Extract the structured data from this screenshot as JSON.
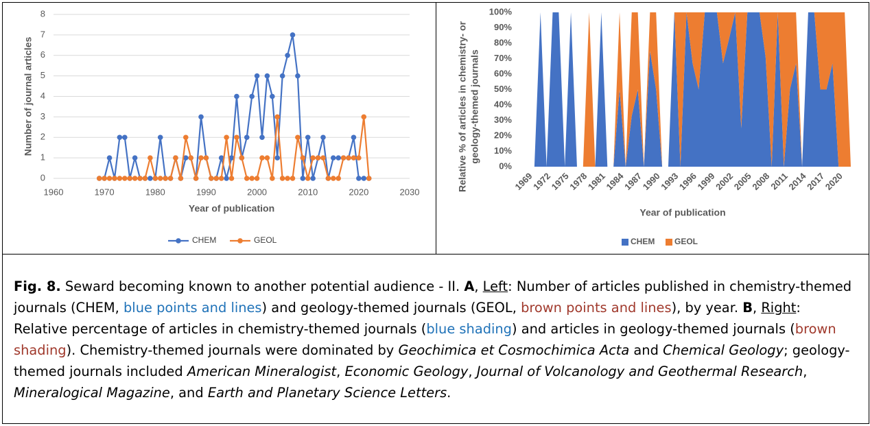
{
  "chart_data": [
    {
      "type": "line",
      "xlabel": "Year of publication",
      "ylabel": "Number of journal articles",
      "x": [
        1969,
        1970,
        1971,
        1972,
        1973,
        1974,
        1975,
        1976,
        1977,
        1978,
        1979,
        1980,
        1981,
        1982,
        1983,
        1984,
        1985,
        1986,
        1987,
        1988,
        1989,
        1990,
        1991,
        1992,
        1993,
        1994,
        1995,
        1996,
        1997,
        1998,
        1999,
        2000,
        2001,
        2002,
        2003,
        2004,
        2005,
        2006,
        2007,
        2008,
        2009,
        2010,
        2011,
        2012,
        2013,
        2014,
        2015,
        2016,
        2017,
        2018,
        2019,
        2020,
        2021,
        2022
      ],
      "series": [
        {
          "name": "CHEM",
          "color": "#4472c4",
          "values": [
            0,
            0,
            1,
            0,
            2,
            2,
            0,
            1,
            0,
            0,
            0,
            0,
            2,
            0,
            0,
            1,
            0,
            1,
            1,
            0,
            3,
            1,
            0,
            0,
            1,
            0,
            1,
            4,
            1,
            2,
            4,
            5,
            2,
            5,
            4,
            1,
            5,
            6,
            7,
            5,
            0,
            2,
            0,
            1,
            2,
            0,
            1,
            1,
            1,
            1,
            2,
            0,
            0,
            0
          ]
        },
        {
          "name": "GEOL",
          "color": "#ed7d31",
          "values": [
            0,
            0,
            0,
            0,
            0,
            0,
            0,
            0,
            0,
            0,
            1,
            0,
            0,
            0,
            0,
            1,
            0,
            2,
            1,
            0,
            1,
            1,
            0,
            0,
            0,
            2,
            0,
            2,
            1,
            0,
            0,
            0,
            1,
            1,
            0,
            3,
            0,
            0,
            0,
            2,
            1,
            0,
            1,
            1,
            1,
            0,
            0,
            0,
            1,
            1,
            1,
            1,
            3,
            0
          ]
        }
      ],
      "xlim": [
        1960,
        2030
      ],
      "xticks": [
        1960,
        1970,
        1980,
        1990,
        2000,
        2010,
        2020,
        2030
      ],
      "ylim": [
        0,
        8
      ],
      "yticks": [
        0,
        1,
        2,
        3,
        4,
        5,
        6,
        7,
        8
      ],
      "grid": true,
      "legend": "bottom"
    },
    {
      "type": "area",
      "xlabel": "Year of publication",
      "ylabel": [
        "Relative % of articles in chemistry- or",
        "geology-themed journals"
      ],
      "categories": [
        "1969",
        null,
        null,
        "1972",
        null,
        null,
        "1975",
        null,
        null,
        "1978",
        null,
        null,
        "1981",
        null,
        null,
        "1984",
        null,
        null,
        "1987",
        null,
        null,
        "1990",
        null,
        null,
        "1993",
        null,
        null,
        "1996",
        null,
        null,
        "1999",
        null,
        null,
        "2002",
        null,
        null,
        "2005",
        null,
        null,
        "2008",
        null,
        null,
        "2011",
        null,
        null,
        "2014",
        null,
        null,
        "2017",
        null,
        null,
        "2020",
        null,
        null
      ],
      "series": [
        {
          "name": "CHEM",
          "color": "#4472c4",
          "values": [
            0,
            0,
            100,
            0,
            100,
            100,
            0,
            100,
            0,
            0,
            0,
            0,
            100,
            0,
            0,
            50,
            0,
            33,
            50,
            0,
            75,
            50,
            0,
            0,
            100,
            0,
            100,
            67,
            50,
            100,
            100,
            100,
            67,
            83,
            100,
            25,
            100,
            100,
            100,
            71,
            0,
            100,
            0,
            50,
            67,
            0,
            100,
            100,
            50,
            50,
            67,
            0,
            0,
            0
          ]
        },
        {
          "name": "GEOL",
          "color": "#ed7d31",
          "values": [
            0,
            0,
            0,
            0,
            0,
            0,
            0,
            0,
            0,
            0,
            100,
            0,
            0,
            0,
            0,
            50,
            0,
            67,
            50,
            0,
            25,
            50,
            0,
            0,
            0,
            100,
            0,
            33,
            50,
            0,
            0,
            0,
            33,
            17,
            0,
            75,
            0,
            0,
            0,
            29,
            100,
            0,
            100,
            50,
            33,
            0,
            0,
            0,
            50,
            50,
            33,
            100,
            100,
            0
          ]
        }
      ],
      "stacked": "percent",
      "ylim": [
        0,
        100
      ],
      "yticks": [
        {
          "value": 0,
          "label": "0%"
        },
        {
          "value": 10,
          "label": "10%"
        },
        {
          "value": 20,
          "label": "20%"
        },
        {
          "value": 30,
          "label": "30%"
        },
        {
          "value": 40,
          "label": "40%"
        },
        {
          "value": 50,
          "label": "50%"
        },
        {
          "value": 60,
          "label": "60%"
        },
        {
          "value": 70,
          "label": "70%"
        },
        {
          "value": 80,
          "label": "80%"
        },
        {
          "value": 90,
          "label": "90%"
        },
        {
          "value": 100,
          "label": "100%"
        }
      ],
      "grid": false,
      "legend": "bottom"
    }
  ],
  "caption": [
    "Fig. 8.",
    " Seward becoming known to another potential audience - II. ",
    "A",
    ", ",
    "Left",
    ": Number of articles published in chemistry-themed journals (CHEM, ",
    "blue points and lines",
    ") and geology-themed journals (GEOL, ",
    "brown points and lines",
    "), by year. ",
    "B",
    ", ",
    "Right",
    ": Relative percentage of articles in chemistry-themed journals (",
    "blue shading",
    ") and articles in geology-themed journals (",
    "brown shading",
    "). Chemistry-themed journals were dominated by ",
    "Geochimica et Cosmochimica Acta",
    " and ",
    "Chemical Geology",
    "; geology-themed journals included ",
    "American Mineralogist",
    ", ",
    "Economic Geology",
    ", ",
    "Journal of Volcanology and Geothermal Research",
    ", ",
    "Mineralogical Magazine",
    ", and ",
    "Earth and Planetary Science Letters",
    "."
  ]
}
